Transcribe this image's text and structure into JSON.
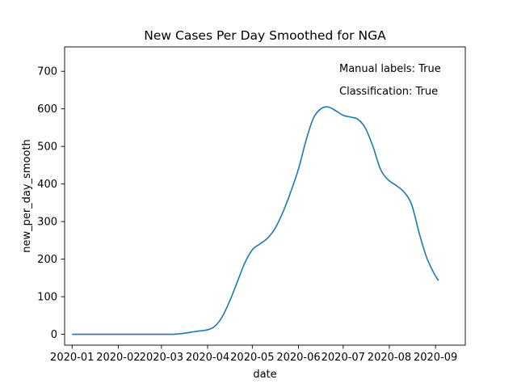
{
  "chart_data": {
    "type": "line",
    "title": "New Cases Per Day Smoothed for NGA",
    "xlabel": "date",
    "ylabel": "new_per_day_smooth",
    "x_axis_type": "date",
    "xlim": [
      "2019-12-27",
      "2020-09-21"
    ],
    "ylim": [
      -29,
      765
    ],
    "x_ticks": [
      {
        "date": "2020-01-01",
        "label": "2020-01"
      },
      {
        "date": "2020-02-01",
        "label": "2020-02"
      },
      {
        "date": "2020-03-01",
        "label": "2020-03"
      },
      {
        "date": "2020-04-01",
        "label": "2020-04"
      },
      {
        "date": "2020-05-01",
        "label": "2020-05"
      },
      {
        "date": "2020-06-01",
        "label": "2020-06"
      },
      {
        "date": "2020-07-01",
        "label": "2020-07"
      },
      {
        "date": "2020-08-01",
        "label": "2020-08"
      },
      {
        "date": "2020-09-01",
        "label": "2020-09"
      }
    ],
    "y_ticks": [
      0,
      100,
      200,
      300,
      400,
      500,
      600,
      700
    ],
    "grid": false,
    "legend": "none",
    "annotations": [
      "Manual labels: True",
      "Classification: True"
    ],
    "line_color": "#1f77b4",
    "series": [
      {
        "points": [
          [
            "2020-01-01",
            0
          ],
          [
            "2020-01-15",
            0
          ],
          [
            "2020-02-01",
            0
          ],
          [
            "2020-02-15",
            0
          ],
          [
            "2020-03-01",
            0
          ],
          [
            "2020-03-09",
            0
          ],
          [
            "2020-03-15",
            2
          ],
          [
            "2020-03-20",
            5
          ],
          [
            "2020-03-25",
            8
          ],
          [
            "2020-04-01",
            12
          ],
          [
            "2020-04-06",
            22
          ],
          [
            "2020-04-11",
            48
          ],
          [
            "2020-04-16",
            90
          ],
          [
            "2020-04-21",
            140
          ],
          [
            "2020-04-26",
            190
          ],
          [
            "2020-05-01",
            225
          ],
          [
            "2020-05-06",
            240
          ],
          [
            "2020-05-11",
            255
          ],
          [
            "2020-05-16",
            280
          ],
          [
            "2020-05-21",
            320
          ],
          [
            "2020-05-26",
            370
          ],
          [
            "2020-06-01",
            440
          ],
          [
            "2020-06-06",
            515
          ],
          [
            "2020-06-11",
            575
          ],
          [
            "2020-06-16",
            600
          ],
          [
            "2020-06-21",
            605
          ],
          [
            "2020-06-26",
            595
          ],
          [
            "2020-07-01",
            583
          ],
          [
            "2020-07-06",
            578
          ],
          [
            "2020-07-11",
            572
          ],
          [
            "2020-07-16",
            548
          ],
          [
            "2020-07-21",
            500
          ],
          [
            "2020-07-26",
            440
          ],
          [
            "2020-07-31",
            412
          ],
          [
            "2020-08-06",
            395
          ],
          [
            "2020-08-11",
            378
          ],
          [
            "2020-08-16",
            345
          ],
          [
            "2020-08-21",
            270
          ],
          [
            "2020-08-26",
            205
          ],
          [
            "2020-08-31",
            162
          ],
          [
            "2020-09-03",
            143
          ]
        ]
      }
    ]
  }
}
